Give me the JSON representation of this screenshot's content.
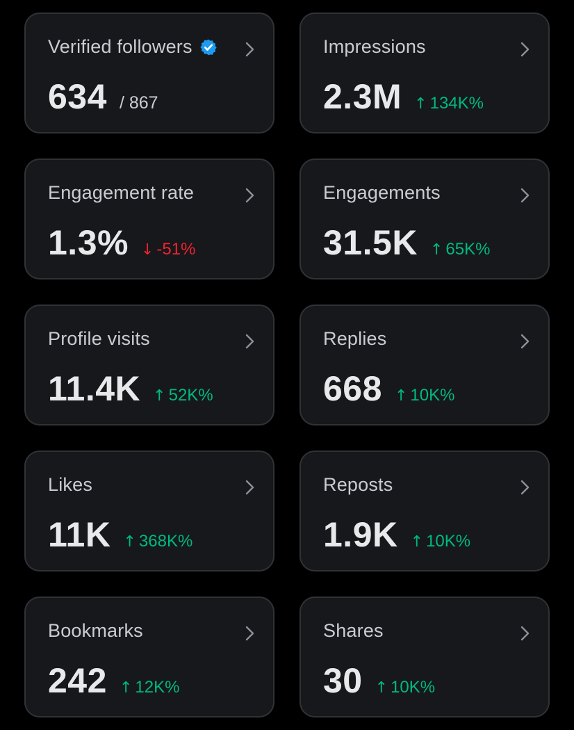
{
  "cards": [
    {
      "label": "Verified followers",
      "value": "634",
      "sub": "/ 867",
      "change": "",
      "direction": ""
    },
    {
      "label": "Impressions",
      "value": "2.3M",
      "sub": "",
      "change": "134K%",
      "direction": "up"
    },
    {
      "label": "Engagement rate",
      "value": "1.3%",
      "sub": "",
      "change": "-51%",
      "direction": "down"
    },
    {
      "label": "Engagements",
      "value": "31.5K",
      "sub": "",
      "change": "65K%",
      "direction": "up"
    },
    {
      "label": "Profile visits",
      "value": "11.4K",
      "sub": "",
      "change": "52K%",
      "direction": "up"
    },
    {
      "label": "Replies",
      "value": "668",
      "sub": "",
      "change": "10K%",
      "direction": "up"
    },
    {
      "label": "Likes",
      "value": "11K",
      "sub": "",
      "change": "368K%",
      "direction": "up"
    },
    {
      "label": "Reposts",
      "value": "1.9K",
      "sub": "",
      "change": "10K%",
      "direction": "up"
    },
    {
      "label": "Bookmarks",
      "value": "242",
      "sub": "",
      "change": "12K%",
      "direction": "up"
    },
    {
      "label": "Shares",
      "value": "30",
      "sub": "",
      "change": "10K%",
      "direction": "up"
    }
  ],
  "colors": {
    "up": "#00ba7c",
    "down": "#f4212e",
    "verified": "#1d9bf0"
  },
  "icons": {
    "verified": "verified-badge-icon",
    "chevron": "chevron-right-icon",
    "up": "arrow-up-icon",
    "down": "arrow-down-icon"
  }
}
